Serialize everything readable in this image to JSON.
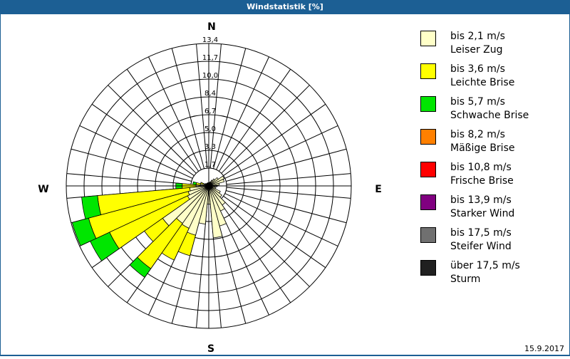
{
  "header": {
    "title": "Windstatistik [%]"
  },
  "footer": {
    "date": "15.9.2017"
  },
  "compass": {
    "n": "N",
    "e": "E",
    "s": "S",
    "w": "W"
  },
  "legend": [
    {
      "range": "bis 2,1 m/s",
      "name": "Leiser Zug",
      "color": "#ffffc8"
    },
    {
      "range": "bis 3,6 m/s",
      "name": "Leichte Brise",
      "color": "#ffff00"
    },
    {
      "range": "bis 5,7 m/s",
      "name": "Schwache Brise",
      "color": "#00e600"
    },
    {
      "range": "bis 8,2 m/s",
      "name": "Mäßige Brise",
      "color": "#ff8000"
    },
    {
      "range": "bis 10,8 m/s",
      "name": "Frische Brise",
      "color": "#ff0000"
    },
    {
      "range": "bis 13,9 m/s",
      "name": "Starker Wind",
      "color": "#800080"
    },
    {
      "range": "bis 17,5 m/s",
      "name": "Steifer Wind",
      "color": "#707070"
    },
    {
      "range": "über 17,5 m/s",
      "name": "Sturm",
      "color": "#202020"
    }
  ],
  "chart_data": {
    "type": "wind-rose",
    "title": "Windstatistik [%]",
    "unit": "%",
    "sector_width_deg": 10,
    "ring_labels": [
      "1,7",
      "3,3",
      "5,0",
      "6,7",
      "8,4",
      "10,0",
      "11,7",
      "13,4"
    ],
    "rmax": 13.4,
    "series_names": [
      "Leiser Zug",
      "Leichte Brise",
      "Schwache Brise"
    ],
    "sectors": [
      {
        "dir": 0,
        "values": [
          0.3,
          0,
          0
        ]
      },
      {
        "dir": 10,
        "values": [
          0.3,
          0,
          0
        ]
      },
      {
        "dir": 20,
        "values": [
          0.4,
          0,
          0
        ]
      },
      {
        "dir": 30,
        "values": [
          0.6,
          0,
          0
        ]
      },
      {
        "dir": 40,
        "values": [
          0.8,
          0,
          0
        ]
      },
      {
        "dir": 50,
        "values": [
          1.1,
          0,
          0
        ]
      },
      {
        "dir": 60,
        "values": [
          1.6,
          0,
          0
        ]
      },
      {
        "dir": 70,
        "values": [
          1.5,
          0,
          0
        ]
      },
      {
        "dir": 80,
        "values": [
          1.0,
          0,
          0
        ]
      },
      {
        "dir": 90,
        "values": [
          0.8,
          0,
          0
        ]
      },
      {
        "dir": 100,
        "values": [
          0.6,
          0,
          0
        ]
      },
      {
        "dir": 110,
        "values": [
          0.7,
          0,
          0
        ]
      },
      {
        "dir": 120,
        "values": [
          1.2,
          0,
          0
        ]
      },
      {
        "dir": 130,
        "values": [
          1.5,
          0,
          0
        ]
      },
      {
        "dir": 140,
        "values": [
          2.2,
          0,
          0
        ]
      },
      {
        "dir": 150,
        "values": [
          2.6,
          0,
          0
        ]
      },
      {
        "dir": 160,
        "values": [
          3.9,
          0,
          0
        ]
      },
      {
        "dir": 170,
        "values": [
          4.9,
          0,
          0
        ]
      },
      {
        "dir": 180,
        "values": [
          1.7,
          0,
          0
        ]
      },
      {
        "dir": 190,
        "values": [
          3.6,
          0,
          0
        ]
      },
      {
        "dir": 200,
        "values": [
          4.8,
          2.0,
          0
        ]
      },
      {
        "dir": 210,
        "values": [
          4.4,
          3.3,
          0
        ]
      },
      {
        "dir": 220,
        "values": [
          4.3,
          5.2,
          1.0
        ]
      },
      {
        "dir": 230,
        "values": [
          5.3,
          2.1,
          0
        ]
      },
      {
        "dir": 240,
        "values": [
          2.2,
          8.1,
          2.0
        ]
      },
      {
        "dir": 250,
        "values": [
          2.0,
          9.7,
          1.6
        ]
      },
      {
        "dir": 260,
        "values": [
          1.8,
          8.7,
          1.5
        ]
      },
      {
        "dir": 270,
        "values": [
          1.2,
          1.3,
          0.6
        ]
      },
      {
        "dir": 280,
        "values": [
          0.8,
          0.4,
          0.3
        ]
      },
      {
        "dir": 290,
        "values": [
          0.5,
          0.3,
          0
        ]
      },
      {
        "dir": 300,
        "values": [
          0.4,
          0,
          0
        ]
      },
      {
        "dir": 310,
        "values": [
          0.3,
          0,
          0
        ]
      },
      {
        "dir": 320,
        "values": [
          0.3,
          0,
          0
        ]
      },
      {
        "dir": 330,
        "values": [
          0.3,
          0,
          0
        ]
      },
      {
        "dir": 340,
        "values": [
          0.3,
          0,
          0
        ]
      },
      {
        "dir": 350,
        "values": [
          0.3,
          0,
          0
        ]
      }
    ]
  }
}
